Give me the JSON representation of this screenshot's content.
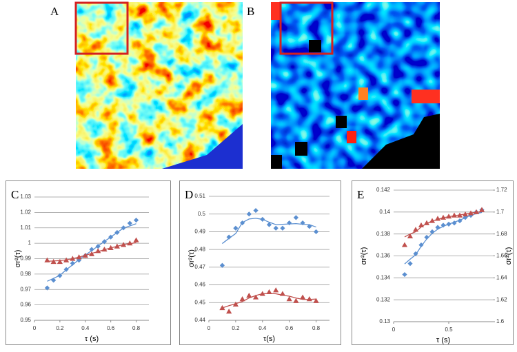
{
  "panel_labels": [
    "A",
    "B"
  ],
  "chart_data": [
    {
      "type": "scatter",
      "label": "C",
      "x_label": "τ (s)",
      "y_label": "σr²(τ)",
      "x": [
        0.1,
        0.15,
        0.2,
        0.25,
        0.3,
        0.35,
        0.4,
        0.45,
        0.5,
        0.55,
        0.6,
        0.65,
        0.7,
        0.75,
        0.8
      ],
      "xlim": [
        0,
        0.9
      ],
      "xticks": [
        0,
        0.2,
        0.4,
        0.6,
        0.8
      ],
      "ylim": [
        0.95,
        1.03
      ],
      "yticks": [
        0.95,
        0.96,
        0.97,
        0.98,
        0.99,
        1,
        1.01,
        1.02,
        1.03
      ],
      "grid": true,
      "series": [
        {
          "color": "#5b8fd0",
          "marker": "diamond",
          "values": [
            0.971,
            0.976,
            0.979,
            0.983,
            0.987,
            0.989,
            0.992,
            0.996,
            0.998,
            1.001,
            1.004,
            1.007,
            1.01,
            1.013,
            1.015
          ]
        },
        {
          "color": "#c0504d",
          "marker": "triangle",
          "values": [
            0.989,
            0.988,
            0.988,
            0.989,
            0.99,
            0.991,
            0.992,
            0.993,
            0.995,
            0.996,
            0.997,
            0.998,
            0.999,
            1.0,
            1.002
          ]
        }
      ]
    },
    {
      "type": "scatter",
      "label": "D",
      "x_label": "τ(s)",
      "y_label": "σr²(τ)",
      "x": [
        0.1,
        0.15,
        0.2,
        0.25,
        0.3,
        0.35,
        0.4,
        0.45,
        0.5,
        0.55,
        0.6,
        0.65,
        0.7,
        0.75,
        0.8
      ],
      "xlim": [
        0,
        0.9
      ],
      "xticks": [
        0,
        0.2,
        0.4,
        0.6,
        0.8
      ],
      "ylim": [
        0.44,
        0.51
      ],
      "yticks": [
        0.44,
        0.45,
        0.46,
        0.47,
        0.48,
        0.49,
        0.5,
        0.51
      ],
      "grid": true,
      "series": [
        {
          "color": "#5b8fd0",
          "marker": "diamond",
          "values": [
            0.471,
            0.487,
            0.492,
            0.495,
            0.5,
            0.502,
            0.497,
            0.494,
            0.492,
            0.492,
            0.495,
            0.498,
            0.495,
            0.493,
            0.49
          ]
        },
        {
          "color": "#c0504d",
          "marker": "triangle",
          "values": [
            0.447,
            0.445,
            0.449,
            0.452,
            0.454,
            0.453,
            0.455,
            0.456,
            0.457,
            0.455,
            0.452,
            0.451,
            0.453,
            0.452,
            0.451
          ]
        }
      ]
    },
    {
      "type": "scatter",
      "label": "E",
      "x_label": "τ (s)",
      "y_label": "σr²(τ)",
      "y2_label": "σr²(τ)",
      "x": [
        0.1,
        0.15,
        0.2,
        0.25,
        0.3,
        0.35,
        0.4,
        0.45,
        0.5,
        0.55,
        0.6,
        0.65,
        0.7,
        0.75,
        0.8
      ],
      "xlim": [
        0,
        0.9
      ],
      "xticks": [
        0,
        0.5
      ],
      "ylim": [
        0.13,
        0.142
      ],
      "yticks": [
        0.13,
        0.132,
        0.134,
        0.136,
        0.138,
        0.14,
        0.142
      ],
      "y2lim": [
        1.6,
        1.72
      ],
      "y2ticks": [
        1.6,
        1.62,
        1.64,
        1.66,
        1.68,
        1.7,
        1.72
      ],
      "grid": true,
      "series": [
        {
          "color": "#5b8fd0",
          "marker": "diamond",
          "values": [
            0.1343,
            0.1353,
            0.1362,
            0.137,
            0.1377,
            0.1382,
            0.1386,
            0.1388,
            0.1389,
            0.139,
            0.1392,
            0.1395,
            0.1397,
            0.14,
            0.1402
          ]
        },
        {
          "color": "#c0504d",
          "marker": "triangle",
          "axis": "y2",
          "values": [
            1.67,
            1.678,
            1.684,
            1.688,
            1.69,
            1.692,
            1.694,
            1.695,
            1.696,
            1.697,
            1.697,
            1.698,
            1.699,
            1.7,
            1.702
          ]
        }
      ]
    }
  ]
}
